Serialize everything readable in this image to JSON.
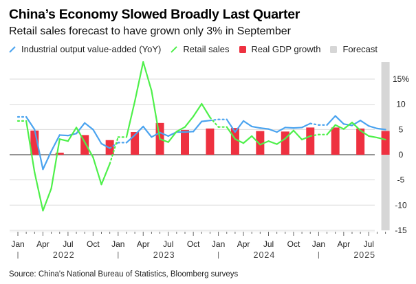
{
  "header": {
    "title": "China’s Economy Slowed Broadly Last Quarter",
    "subtitle": "Retail sales forecast to have grown only 3% in September"
  },
  "legend": [
    {
      "label": "Industrial output value-added (YoY)",
      "icon": "line-icon",
      "color": "#4aa3ef"
    },
    {
      "label": "Retail sales",
      "icon": "line-icon",
      "color": "#4ef04a"
    },
    {
      "label": "Real GDP growth",
      "icon": "square-icon",
      "color": "#ee3140"
    },
    {
      "label": "Forecast",
      "icon": "square-icon",
      "color": "#d6d6d6"
    }
  ],
  "footer": {
    "source": "Source: China's National Bureau of Statistics, Bloomberg surveys"
  },
  "chart_data": {
    "type": "line",
    "title": "China’s Economy Slowed Broadly Last Quarter",
    "subtitle": "Retail sales forecast to have grown only 3% in September",
    "xlabel": "",
    "ylabel": "",
    "ylim": [
      -15,
      15
    ],
    "yticks": [
      "15%",
      "10",
      "5",
      "0",
      "-5",
      "-10",
      "-15"
    ],
    "ytick_values": [
      15,
      10,
      5,
      0,
      -5,
      -10,
      -15
    ],
    "grid": true,
    "legend_position": "top-left",
    "x_month_labels": [
      "Jan",
      "Apr",
      "Jul",
      "Oct",
      "Jan",
      "Apr",
      "Jul",
      "Oct",
      "Jan",
      "Apr",
      "Jul",
      "Oct",
      "Jan",
      "Apr",
      "Jul"
    ],
    "x_years": [
      "2022",
      "2023",
      "2024",
      "2025"
    ],
    "x_start": "2022-01",
    "forecast_month": "2025-09",
    "series": [
      {
        "name": "Industrial output value-added (YoY)",
        "color": "#4aa3ef",
        "note": "dotted segments where data are missing (Jan/Feb combined releases)",
        "points": [
          [
            "2022-01",
            7.5
          ],
          [
            "2022-02",
            7.5
          ],
          [
            "2022-03",
            5.0
          ],
          [
            "2022-04",
            -2.9
          ],
          [
            "2022-05",
            0.7
          ],
          [
            "2022-06",
            3.9
          ],
          [
            "2022-07",
            3.8
          ],
          [
            "2022-08",
            4.2
          ],
          [
            "2022-09",
            6.3
          ],
          [
            "2022-10",
            5.0
          ],
          [
            "2022-11",
            2.2
          ],
          [
            "2022-12",
            1.3
          ],
          [
            "2023-01",
            2.4
          ],
          [
            "2023-02",
            2.4
          ],
          [
            "2023-03",
            3.9
          ],
          [
            "2023-04",
            5.6
          ],
          [
            "2023-05",
            3.5
          ],
          [
            "2023-06",
            4.4
          ],
          [
            "2023-07",
            3.7
          ],
          [
            "2023-08",
            4.5
          ],
          [
            "2023-09",
            4.5
          ],
          [
            "2023-10",
            4.6
          ],
          [
            "2023-11",
            6.6
          ],
          [
            "2023-12",
            6.8
          ],
          [
            "2024-01",
            7.0
          ],
          [
            "2024-02",
            7.0
          ],
          [
            "2024-03",
            4.5
          ],
          [
            "2024-04",
            6.7
          ],
          [
            "2024-05",
            5.6
          ],
          [
            "2024-06",
            5.3
          ],
          [
            "2024-07",
            5.1
          ],
          [
            "2024-08",
            4.5
          ],
          [
            "2024-09",
            5.4
          ],
          [
            "2024-10",
            5.3
          ],
          [
            "2024-11",
            5.4
          ],
          [
            "2024-12",
            6.2
          ],
          [
            "2025-01",
            5.9
          ],
          [
            "2025-02",
            5.9
          ],
          [
            "2025-03",
            7.7
          ],
          [
            "2025-04",
            6.1
          ],
          [
            "2025-05",
            5.8
          ],
          [
            "2025-06",
            6.8
          ],
          [
            "2025-07",
            5.7
          ],
          [
            "2025-08",
            5.2
          ],
          [
            "2025-09",
            5.0
          ]
        ]
      },
      {
        "name": "Retail sales",
        "color": "#4ef04a",
        "points": [
          [
            "2022-01",
            6.7
          ],
          [
            "2022-02",
            6.7
          ],
          [
            "2022-03",
            -3.5
          ],
          [
            "2022-04",
            -11.1
          ],
          [
            "2022-05",
            -6.7
          ],
          [
            "2022-06",
            3.1
          ],
          [
            "2022-07",
            2.7
          ],
          [
            "2022-08",
            5.4
          ],
          [
            "2022-09",
            2.5
          ],
          [
            "2022-10",
            -0.5
          ],
          [
            "2022-11",
            -5.9
          ],
          [
            "2022-12",
            -1.8
          ],
          [
            "2023-01",
            3.5
          ],
          [
            "2023-02",
            3.5
          ],
          [
            "2023-03",
            10.6
          ],
          [
            "2023-04",
            18.4
          ],
          [
            "2023-05",
            12.7
          ],
          [
            "2023-06",
            3.1
          ],
          [
            "2023-07",
            2.5
          ],
          [
            "2023-08",
            4.6
          ],
          [
            "2023-09",
            5.5
          ],
          [
            "2023-10",
            7.6
          ],
          [
            "2023-11",
            10.1
          ],
          [
            "2023-12",
            7.4
          ],
          [
            "2024-01",
            5.5
          ],
          [
            "2024-02",
            5.5
          ],
          [
            "2024-03",
            3.1
          ],
          [
            "2024-04",
            2.3
          ],
          [
            "2024-05",
            3.7
          ],
          [
            "2024-06",
            2.0
          ],
          [
            "2024-07",
            2.7
          ],
          [
            "2024-08",
            2.1
          ],
          [
            "2024-09",
            3.2
          ],
          [
            "2024-10",
            4.8
          ],
          [
            "2024-11",
            3.0
          ],
          [
            "2024-12",
            3.7
          ],
          [
            "2025-01",
            4.0
          ],
          [
            "2025-02",
            4.0
          ],
          [
            "2025-03",
            5.9
          ],
          [
            "2025-04",
            5.1
          ],
          [
            "2025-05",
            6.4
          ],
          [
            "2025-06",
            4.8
          ],
          [
            "2025-07",
            3.7
          ],
          [
            "2025-08",
            3.4
          ],
          [
            "2025-09",
            3.0
          ]
        ]
      },
      {
        "name": "Real GDP growth",
        "type": "bar",
        "color": "#ee3140",
        "points": [
          [
            "2022-03",
            4.8
          ],
          [
            "2022-06",
            0.4
          ],
          [
            "2022-09",
            3.9
          ],
          [
            "2022-12",
            2.9
          ],
          [
            "2023-03",
            4.5
          ],
          [
            "2023-06",
            6.3
          ],
          [
            "2023-09",
            4.9
          ],
          [
            "2023-12",
            5.2
          ],
          [
            "2024-03",
            5.3
          ],
          [
            "2024-06",
            4.7
          ],
          [
            "2024-09",
            4.6
          ],
          [
            "2024-12",
            5.4
          ],
          [
            "2025-03",
            5.4
          ],
          [
            "2025-06",
            5.2
          ],
          [
            "2025-09",
            4.7
          ]
        ]
      }
    ]
  }
}
